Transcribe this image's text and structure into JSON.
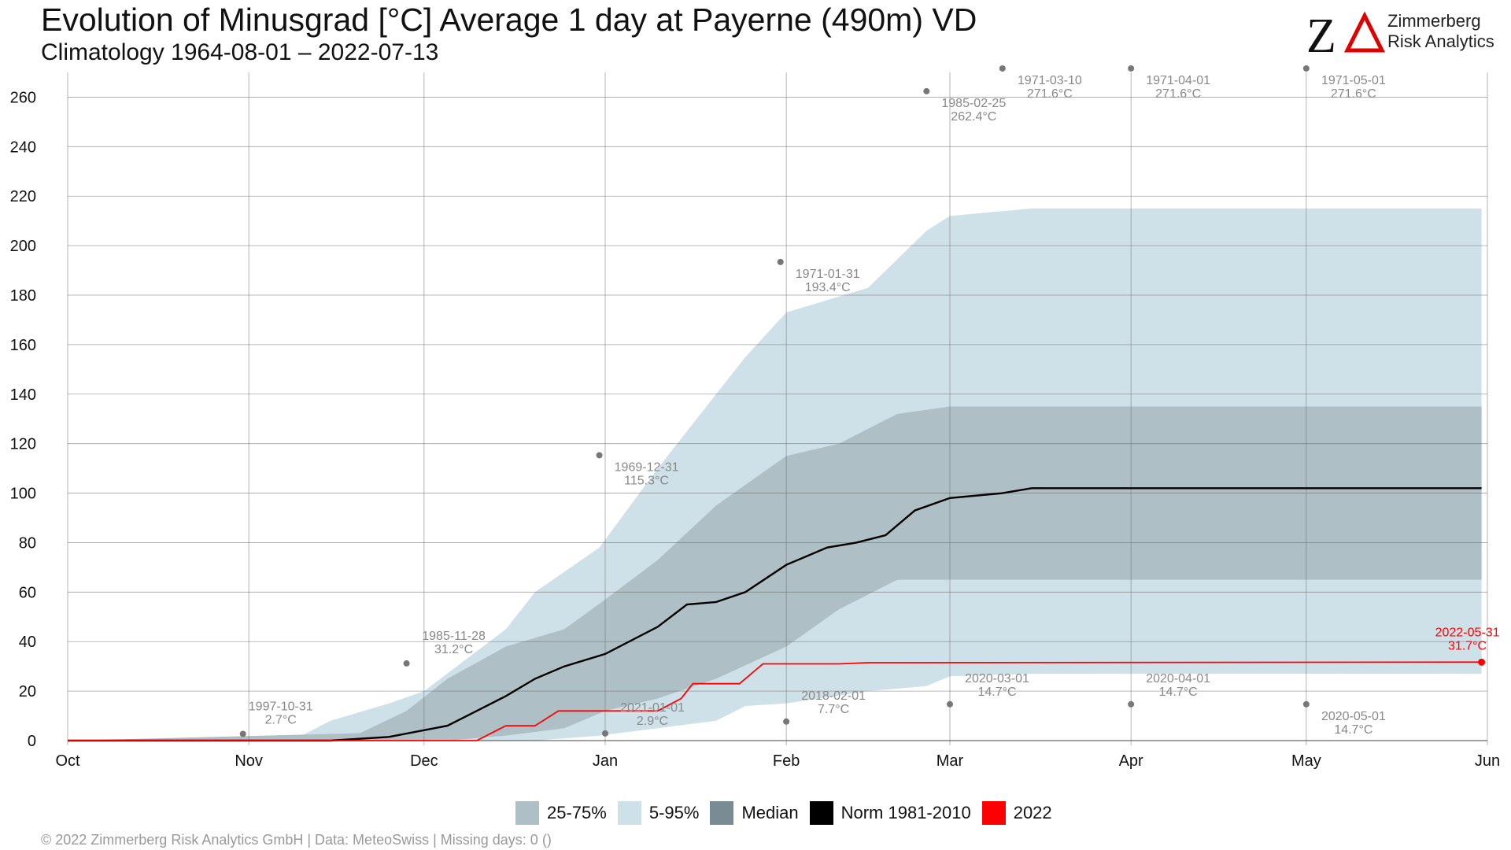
{
  "title": "Evolution of Minusgrad [°C] Average 1 day at Payerne (490m) VD",
  "subtitle": "Climatology 1964-08-01 – 2022-07-13",
  "logo": {
    "brand_line1": "Zimmerberg",
    "brand_line2": "Risk Analytics",
    "mark": "ZΔ"
  },
  "footer": "©  2022 Zimmerberg Risk Analytics GmbH | Data: MeteoSwiss | Missing days: 0 ()",
  "legend": [
    {
      "label": "25-75%",
      "color": "#aebfc6"
    },
    {
      "label": "5-95%",
      "color": "#cfe1e8"
    },
    {
      "label": "Median",
      "color": "#7a8c93"
    },
    {
      "label": "Norm 1981-2010",
      "color": "#000000"
    },
    {
      "label": "2022",
      "color": "#ff0000"
    }
  ],
  "chart_data": {
    "type": "area",
    "x_start": "2021-10-01",
    "x_end": "2022-06-01",
    "xlim": [
      "2021-10-01",
      "2022-06-01"
    ],
    "ylim": [
      0,
      270
    ],
    "y_ticks": [
      0,
      20,
      40,
      60,
      80,
      100,
      120,
      140,
      160,
      180,
      200,
      220,
      240,
      260
    ],
    "x_ticks": [
      {
        "date": "2021-10-01",
        "label": "Oct"
      },
      {
        "date": "2021-11-01",
        "label": "Nov"
      },
      {
        "date": "2021-12-01",
        "label": "Dec"
      },
      {
        "date": "2022-01-01",
        "label": "Jan"
      },
      {
        "date": "2022-02-01",
        "label": "Feb"
      },
      {
        "date": "2022-03-01",
        "label": "Mar"
      },
      {
        "date": "2022-04-01",
        "label": "Apr"
      },
      {
        "date": "2022-05-01",
        "label": "May"
      },
      {
        "date": "2022-06-01",
        "label": "Jun"
      }
    ],
    "grid": true,
    "legend_position": "bottom",
    "band_5_95": {
      "x": [
        "2021-10-01",
        "2021-11-10",
        "2021-11-15",
        "2021-11-25",
        "2021-12-01",
        "2021-12-15",
        "2021-12-20",
        "2021-12-31",
        "2022-01-10",
        "2022-01-20",
        "2022-01-25",
        "2022-02-01",
        "2022-02-15",
        "2022-02-25",
        "2022-03-01",
        "2022-03-15",
        "2022-05-31"
      ],
      "lower": [
        0,
        0,
        0,
        0,
        0,
        0,
        0,
        2,
        5,
        8,
        14,
        15,
        20,
        22,
        26,
        27,
        27
      ],
      "upper": [
        0,
        2,
        8,
        15,
        20,
        45,
        60,
        78,
        110,
        140,
        155,
        173,
        183,
        206,
        212,
        215,
        215
      ]
    },
    "band_25_75": {
      "x": [
        "2021-10-01",
        "2021-11-20",
        "2021-11-28",
        "2021-12-05",
        "2021-12-15",
        "2021-12-25",
        "2022-01-01",
        "2022-01-10",
        "2022-01-20",
        "2022-02-01",
        "2022-02-10",
        "2022-02-20",
        "2022-03-01",
        "2022-03-15",
        "2022-05-31"
      ],
      "lower": [
        0,
        0,
        0,
        0,
        2,
        5,
        12,
        17,
        25,
        38,
        53,
        65,
        65,
        65,
        65
      ],
      "upper": [
        0,
        3,
        12,
        25,
        38,
        45,
        57,
        73,
        95,
        115,
        120,
        132,
        135,
        135,
        135
      ]
    },
    "series": [
      {
        "name": "Norm 1981-2010",
        "color": "#000000",
        "x": [
          "2021-10-01",
          "2021-11-15",
          "2021-11-25",
          "2021-12-05",
          "2021-12-10",
          "2021-12-15",
          "2021-12-20",
          "2021-12-25",
          "2022-01-01",
          "2022-01-10",
          "2022-01-15",
          "2022-01-20",
          "2022-01-25",
          "2022-02-01",
          "2022-02-08",
          "2022-02-13",
          "2022-02-18",
          "2022-02-23",
          "2022-03-01",
          "2022-03-10",
          "2022-03-15",
          "2022-05-31"
        ],
        "values": [
          0,
          0,
          1.5,
          6,
          12,
          18,
          25,
          30,
          35,
          46,
          55,
          56,
          60,
          71,
          78,
          80,
          83,
          93,
          98,
          100,
          102,
          102
        ]
      },
      {
        "name": "2022",
        "color": "#ff0000",
        "x": [
          "2021-10-01",
          "2021-12-10",
          "2021-12-15",
          "2021-12-20",
          "2021-12-24",
          "2022-01-10",
          "2022-01-14",
          "2022-01-16",
          "2022-01-24",
          "2022-01-28",
          "2022-02-10",
          "2022-02-15",
          "2022-05-31"
        ],
        "values": [
          0,
          0,
          6,
          6,
          12,
          12,
          17,
          23,
          23,
          31,
          31,
          31.5,
          31.7
        ]
      }
    ],
    "annotations": [
      {
        "date": "1997-10-31",
        "value": "2.7°C",
        "x": "2021-10-31",
        "y": 2.7,
        "label_side": "below-left"
      },
      {
        "date": "1985-11-28",
        "value": "31.2°C",
        "x": "2021-11-28",
        "y": 31.2,
        "label_side": "right"
      },
      {
        "date": "1969-12-31",
        "value": "115.3°C",
        "x": "2021-12-31",
        "y": 115.3,
        "label_side": "right-below"
      },
      {
        "date": "2021-01-01",
        "value": "2.9°C",
        "x": "2022-01-01",
        "y": 2.9,
        "label_side": "right-above"
      },
      {
        "date": "1971-01-31",
        "value": "193.4°C",
        "x": "2022-01-31",
        "y": 193.4,
        "label_side": "right-below"
      },
      {
        "date": "2018-02-01",
        "value": "7.7°C",
        "x": "2022-02-01",
        "y": 7.7,
        "label_side": "right-above"
      },
      {
        "date": "1985-02-25",
        "value": "262.4°C",
        "x": "2022-02-25",
        "y": 262.4,
        "label_side": "right-below"
      },
      {
        "date": "2020-03-01",
        "value": "14.7°C",
        "x": "2022-03-01",
        "y": 14.7,
        "label_side": "right-above"
      },
      {
        "date": "1971-03-10",
        "value": "271.6°C",
        "x": "2022-03-10",
        "y": 271.6,
        "label_side": "right-below"
      },
      {
        "date": "1971-04-01",
        "value": "271.6°C",
        "x": "2022-04-01",
        "y": 271.6,
        "label_side": "right-below"
      },
      {
        "date": "2020-04-01",
        "value": "14.7°C",
        "x": "2022-04-01",
        "y": 14.7,
        "label_side": "right-above"
      },
      {
        "date": "1971-05-01",
        "value": "271.6°C",
        "x": "2022-05-01",
        "y": 271.6,
        "label_side": "right-below"
      },
      {
        "date": "2020-05-01",
        "value": "14.7°C",
        "x": "2022-05-01",
        "y": 14.7,
        "label_side": "right-below"
      }
    ],
    "current": {
      "date": "2022-05-31",
      "value": "31.7°C",
      "x": "2022-05-31",
      "y": 31.7,
      "color": "#ff0000"
    }
  }
}
